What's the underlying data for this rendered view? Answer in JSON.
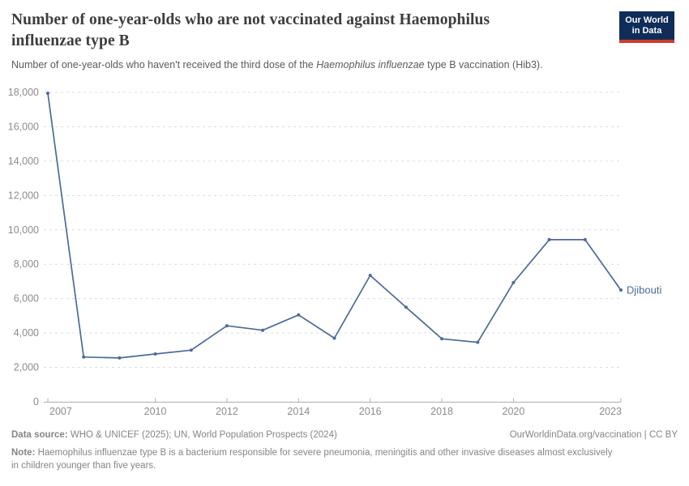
{
  "header": {
    "title": "Number of one-year-olds who are not vaccinated against Haemophilus influenzae type B",
    "subtitle_prefix": "Number of one-year-olds who haven't received the third dose of the ",
    "subtitle_italic": "Haemophilus influenzae",
    "subtitle_suffix": " type B vaccination (Hib3).",
    "logo": {
      "line1": "Our World",
      "line2": "in Data"
    }
  },
  "chart_data": {
    "type": "line",
    "title": "Number of one-year-olds who are not vaccinated against Haemophilus influenzae type B",
    "x": [
      2007,
      2008,
      2009,
      2010,
      2011,
      2012,
      2013,
      2014,
      2015,
      2016,
      2017,
      2018,
      2019,
      2020,
      2021,
      2022,
      2023
    ],
    "series": [
      {
        "name": "Djibouti",
        "color": "#4c6a9c",
        "values": [
          17950,
          2600,
          2550,
          2780,
          3000,
          4420,
          4160,
          5050,
          3700,
          7350,
          5500,
          3660,
          3460,
          6930,
          9430,
          9430,
          6500
        ]
      }
    ],
    "xlabel": "",
    "ylabel": "",
    "ylim": [
      0,
      18000
    ],
    "yticks": [
      0,
      2000,
      4000,
      6000,
      8000,
      10000,
      12000,
      14000,
      16000,
      18000
    ],
    "xticks": [
      2007,
      2010,
      2012,
      2014,
      2016,
      2018,
      2020,
      2023
    ],
    "grid": "horizontal-dashed",
    "legend_position": "end-of-line-label"
  },
  "footer": {
    "datasource_label": "Data source:",
    "datasource_text": " WHO & UNICEF (2025); UN, World Population Prospects (2024)",
    "link": "OurWorldinData.org/vaccination | CC BY",
    "note_label": "Note:",
    "note_text": " Haemophilus influenzae type B is a bacterium responsible for severe pneumonia, meningitis and other invasive diseases almost exclusively in children younger than five years."
  },
  "colors": {
    "line": "#4c6a9c",
    "logo_bg": "#102d59",
    "logo_stripe": "#d0392b",
    "grid": "#dcdcdc",
    "axis": "#afafaf",
    "tick_text": "#8c8c8c"
  }
}
